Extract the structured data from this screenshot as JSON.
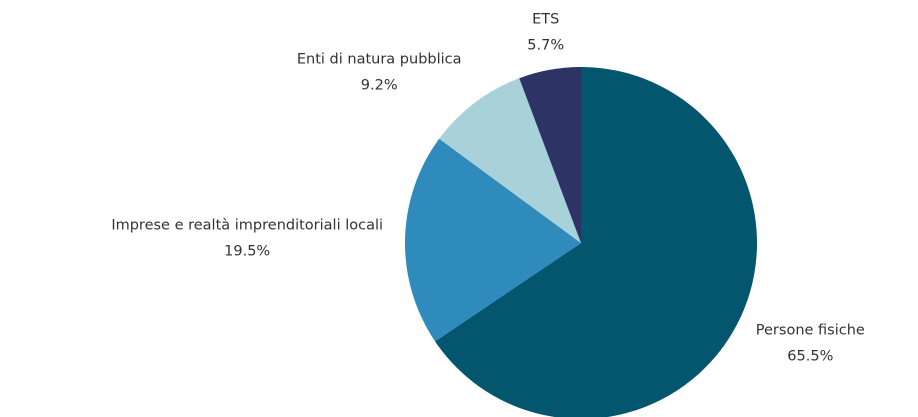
{
  "chart_data": {
    "type": "pie",
    "categories": [
      "Persone fisiche",
      "Imprese e realtà imprenditoriali locali",
      "Enti di natura pubblica",
      "ETS"
    ],
    "values": [
      65.5,
      19.5,
      9.2,
      5.7
    ],
    "value_labels": [
      "65.5%",
      "19.5%",
      "9.2%",
      "5.7%"
    ],
    "colors": [
      "#04566f",
      "#2e8bbb",
      "#a8d1da",
      "#2e3366"
    ]
  }
}
